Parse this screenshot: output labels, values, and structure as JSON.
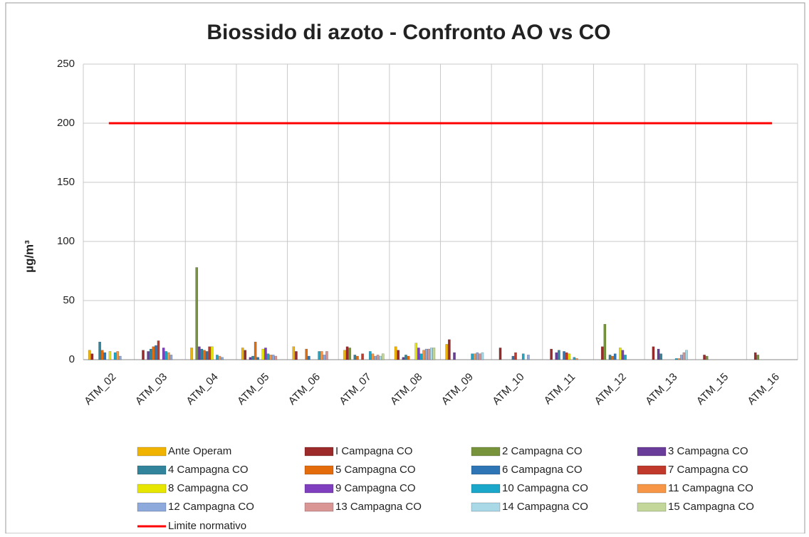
{
  "chart_data": {
    "type": "bar",
    "title": "Biossido di azoto - Confronto AO vs CO",
    "y_label": "µg/m³",
    "categories": [
      "ATM_02",
      "ATM_03",
      "ATM_04",
      "ATM_05",
      "ATM_06",
      "ATM_07",
      "ATM_08",
      "ATM_09",
      "ATM_10",
      "ATM_11",
      "ATM_12",
      "ATM_13",
      "ATM_15",
      "ATM_16"
    ],
    "ylim": [
      0,
      250
    ],
    "yticks": [
      0,
      50,
      100,
      150,
      200,
      250
    ],
    "grid": true,
    "series": [
      {
        "name": "Ante Operam",
        "color": "#f0b400",
        "values": [
          8,
          null,
          10,
          10,
          11,
          8,
          11,
          13,
          null,
          null,
          null,
          null,
          null,
          null
        ]
      },
      {
        "name": "I Campagna CO",
        "color": "#9c2a2a",
        "values": [
          5,
          8,
          null,
          8,
          7,
          11,
          8,
          17,
          10,
          9,
          11,
          11,
          4,
          6
        ]
      },
      {
        "name": "2 Campagna CO",
        "color": "#77933c",
        "values": [
          null,
          null,
          78,
          null,
          null,
          10,
          null,
          null,
          null,
          null,
          30,
          null,
          3,
          4
        ]
      },
      {
        "name": "3 Campagna CO",
        "color": "#6a3d9a",
        "values": [
          null,
          7,
          11,
          2,
          null,
          null,
          2,
          6,
          null,
          6,
          null,
          9,
          null,
          null
        ]
      },
      {
        "name": "4 Campagna CO",
        "color": "#31849b",
        "values": [
          15,
          9,
          9,
          3,
          null,
          4,
          4,
          null,
          null,
          8,
          4,
          5,
          null,
          null
        ]
      },
      {
        "name": "5 Campagna CO",
        "color": "#e46c0a",
        "values": [
          8,
          11,
          8,
          15,
          9,
          3,
          3,
          null,
          null,
          null,
          3,
          null,
          null,
          null
        ]
      },
      {
        "name": "6 Campagna CO",
        "color": "#2e75b6",
        "values": [
          6,
          12,
          7,
          2,
          3,
          null,
          null,
          null,
          3,
          7,
          5,
          null,
          null,
          null
        ]
      },
      {
        "name": "7 Campagna CO",
        "color": "#c0392b",
        "values": [
          null,
          16,
          11,
          null,
          null,
          5,
          null,
          null,
          6,
          6,
          null,
          null,
          null,
          null
        ]
      },
      {
        "name": "8 Campagna CO",
        "color": "#e6e600",
        "values": [
          7,
          null,
          11,
          9,
          null,
          null,
          14,
          null,
          null,
          5,
          10,
          null,
          null,
          null
        ]
      },
      {
        "name": "9 Campagna CO",
        "color": "#7f3fbf",
        "values": [
          null,
          10,
          null,
          10,
          null,
          null,
          10,
          null,
          null,
          null,
          8,
          null,
          null,
          null
        ]
      },
      {
        "name": "10 Campagna CO",
        "color": "#1aa7c9",
        "values": [
          6,
          7,
          4,
          5,
          7,
          7,
          5,
          5,
          5,
          2,
          4,
          1,
          null,
          null
        ]
      },
      {
        "name": "11 Campagna CO",
        "color": "#f79646",
        "values": [
          7,
          6,
          3,
          4,
          7,
          5,
          8,
          5,
          null,
          1,
          null,
          1,
          null,
          null
        ]
      },
      {
        "name": "12 Campagna CO",
        "color": "#8ea9db",
        "values": [
          3,
          4,
          2,
          4,
          4,
          3,
          9,
          6,
          4,
          null,
          null,
          4,
          null,
          null
        ]
      },
      {
        "name": "13 Campagna CO",
        "color": "#d99694",
        "values": [
          null,
          null,
          null,
          3,
          7,
          4,
          9,
          5,
          null,
          null,
          null,
          6,
          null,
          null
        ]
      },
      {
        "name": "14 Campagna CO",
        "color": "#a9d8e6",
        "values": [
          null,
          null,
          null,
          null,
          null,
          3,
          10,
          6,
          null,
          null,
          null,
          8,
          null,
          null
        ]
      },
      {
        "name": "15 Campagna CO",
        "color": "#c4d79b",
        "values": [
          null,
          null,
          null,
          null,
          null,
          5,
          10,
          null,
          null,
          null,
          null,
          null,
          null,
          null
        ]
      }
    ],
    "line": {
      "name": "Limite normativo",
      "color": "#ff0000",
      "values": [
        200,
        200,
        200,
        200,
        200,
        200,
        200,
        200,
        200,
        200,
        200,
        200,
        200,
        200
      ]
    }
  }
}
